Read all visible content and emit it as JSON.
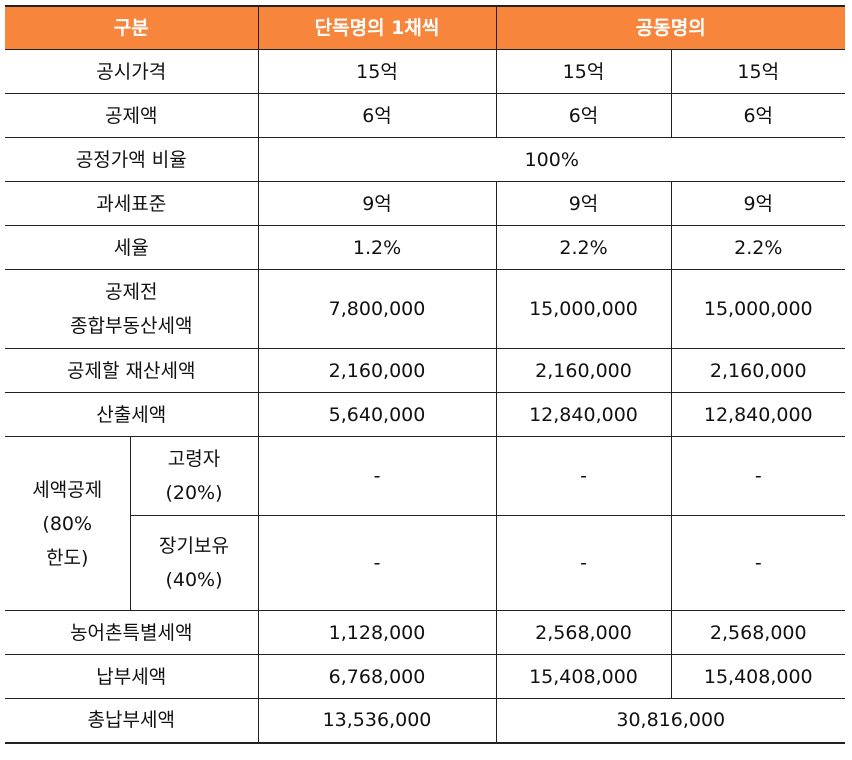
{
  "header": {
    "c1": "구분",
    "c2": "단독명의 1채씩",
    "c3": "공동명의"
  },
  "rows": {
    "gongsi": {
      "label": "공시가격",
      "a": "15억",
      "b": "15억",
      "c": "15억"
    },
    "gongje": {
      "label": "공제액",
      "a": "6억",
      "b": "6억",
      "c": "6억"
    },
    "ratio": {
      "label": "공정가액 비율",
      "v": "100%"
    },
    "base": {
      "label": "과세표준",
      "a": "9억",
      "b": "9억",
      "c": "9억"
    },
    "rate": {
      "label": "세율",
      "a": "1.2%",
      "b": "2.2%",
      "c": "2.2%"
    },
    "pre": {
      "label1": "공제전",
      "label2": "종합부동산세액",
      "a": "7,800,000",
      "b": "15,000,000",
      "c": "15,000,000"
    },
    "property": {
      "label": "공제할 재산세액",
      "a": "2,160,000",
      "b": "2,160,000",
      "c": "2,160,000"
    },
    "calc": {
      "label": "산출세액",
      "a": "5,640,000",
      "b": "12,840,000",
      "c": "12,840,000"
    },
    "credit": {
      "label1": "세액공제",
      "label2": "(80%",
      "label3": "한도)",
      "elderly": {
        "label1": "고령자",
        "label2": "(20%)",
        "a": "-",
        "b": "-",
        "c": "-"
      },
      "longterm": {
        "label1": "장기보유",
        "label2": "(40%)",
        "a": "-",
        "b": "-",
        "c": "-"
      }
    },
    "rural": {
      "label": "농어촌특별세액",
      "a": "1,128,000",
      "b": "2,568,000",
      "c": "2,568,000"
    },
    "pay": {
      "label": "납부세액",
      "a": "6,768,000",
      "b": "15,408,000",
      "c": "15,408,000"
    },
    "total": {
      "label": "총납부세액",
      "a": "13,536,000",
      "b": "30,816,000"
    }
  }
}
